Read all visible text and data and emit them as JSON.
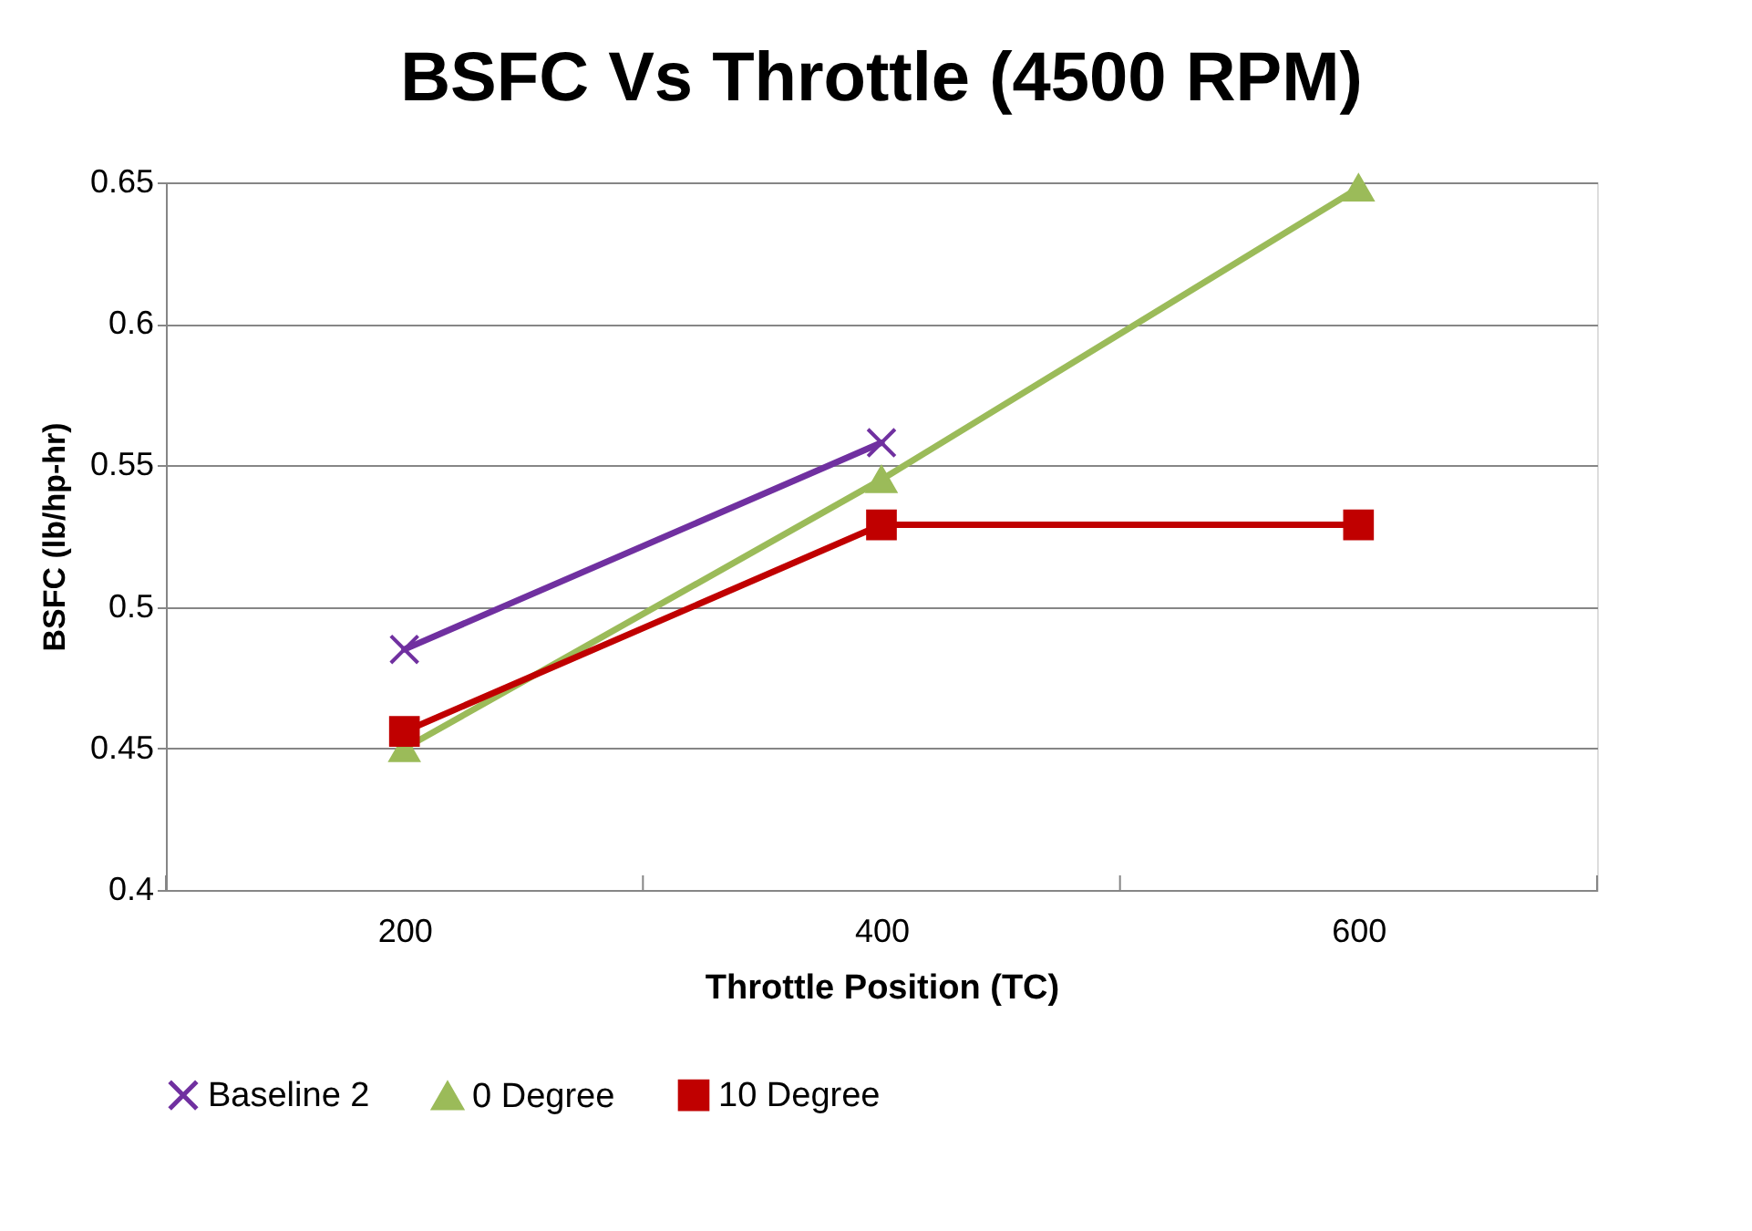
{
  "chart_data": {
    "type": "line",
    "title": "BSFC Vs Throttle (4500 RPM)",
    "xlabel": "Throttle Position (TC)",
    "ylabel": "BSFC (lb/hp-hr)",
    "categories": [
      "200",
      "400",
      "600"
    ],
    "series": [
      {
        "name": "Baseline 2",
        "color": "#7030a0",
        "marker": "cross",
        "values": [
          0.485,
          0.558,
          null
        ]
      },
      {
        "name": "0 Degree",
        "color": "#9bbb59",
        "marker": "triangle",
        "values": [
          0.45,
          0.545,
          0.648
        ]
      },
      {
        "name": "10 Degree",
        "color": "#c00000",
        "marker": "square",
        "values": [
          0.456,
          0.529,
          0.529
        ]
      }
    ],
    "ylim": [
      0.4,
      0.65
    ],
    "yticks": [
      0.4,
      0.45,
      0.5,
      0.55,
      0.6,
      0.65
    ],
    "grid": "y",
    "legend": "bottom",
    "line_style": "solid"
  }
}
